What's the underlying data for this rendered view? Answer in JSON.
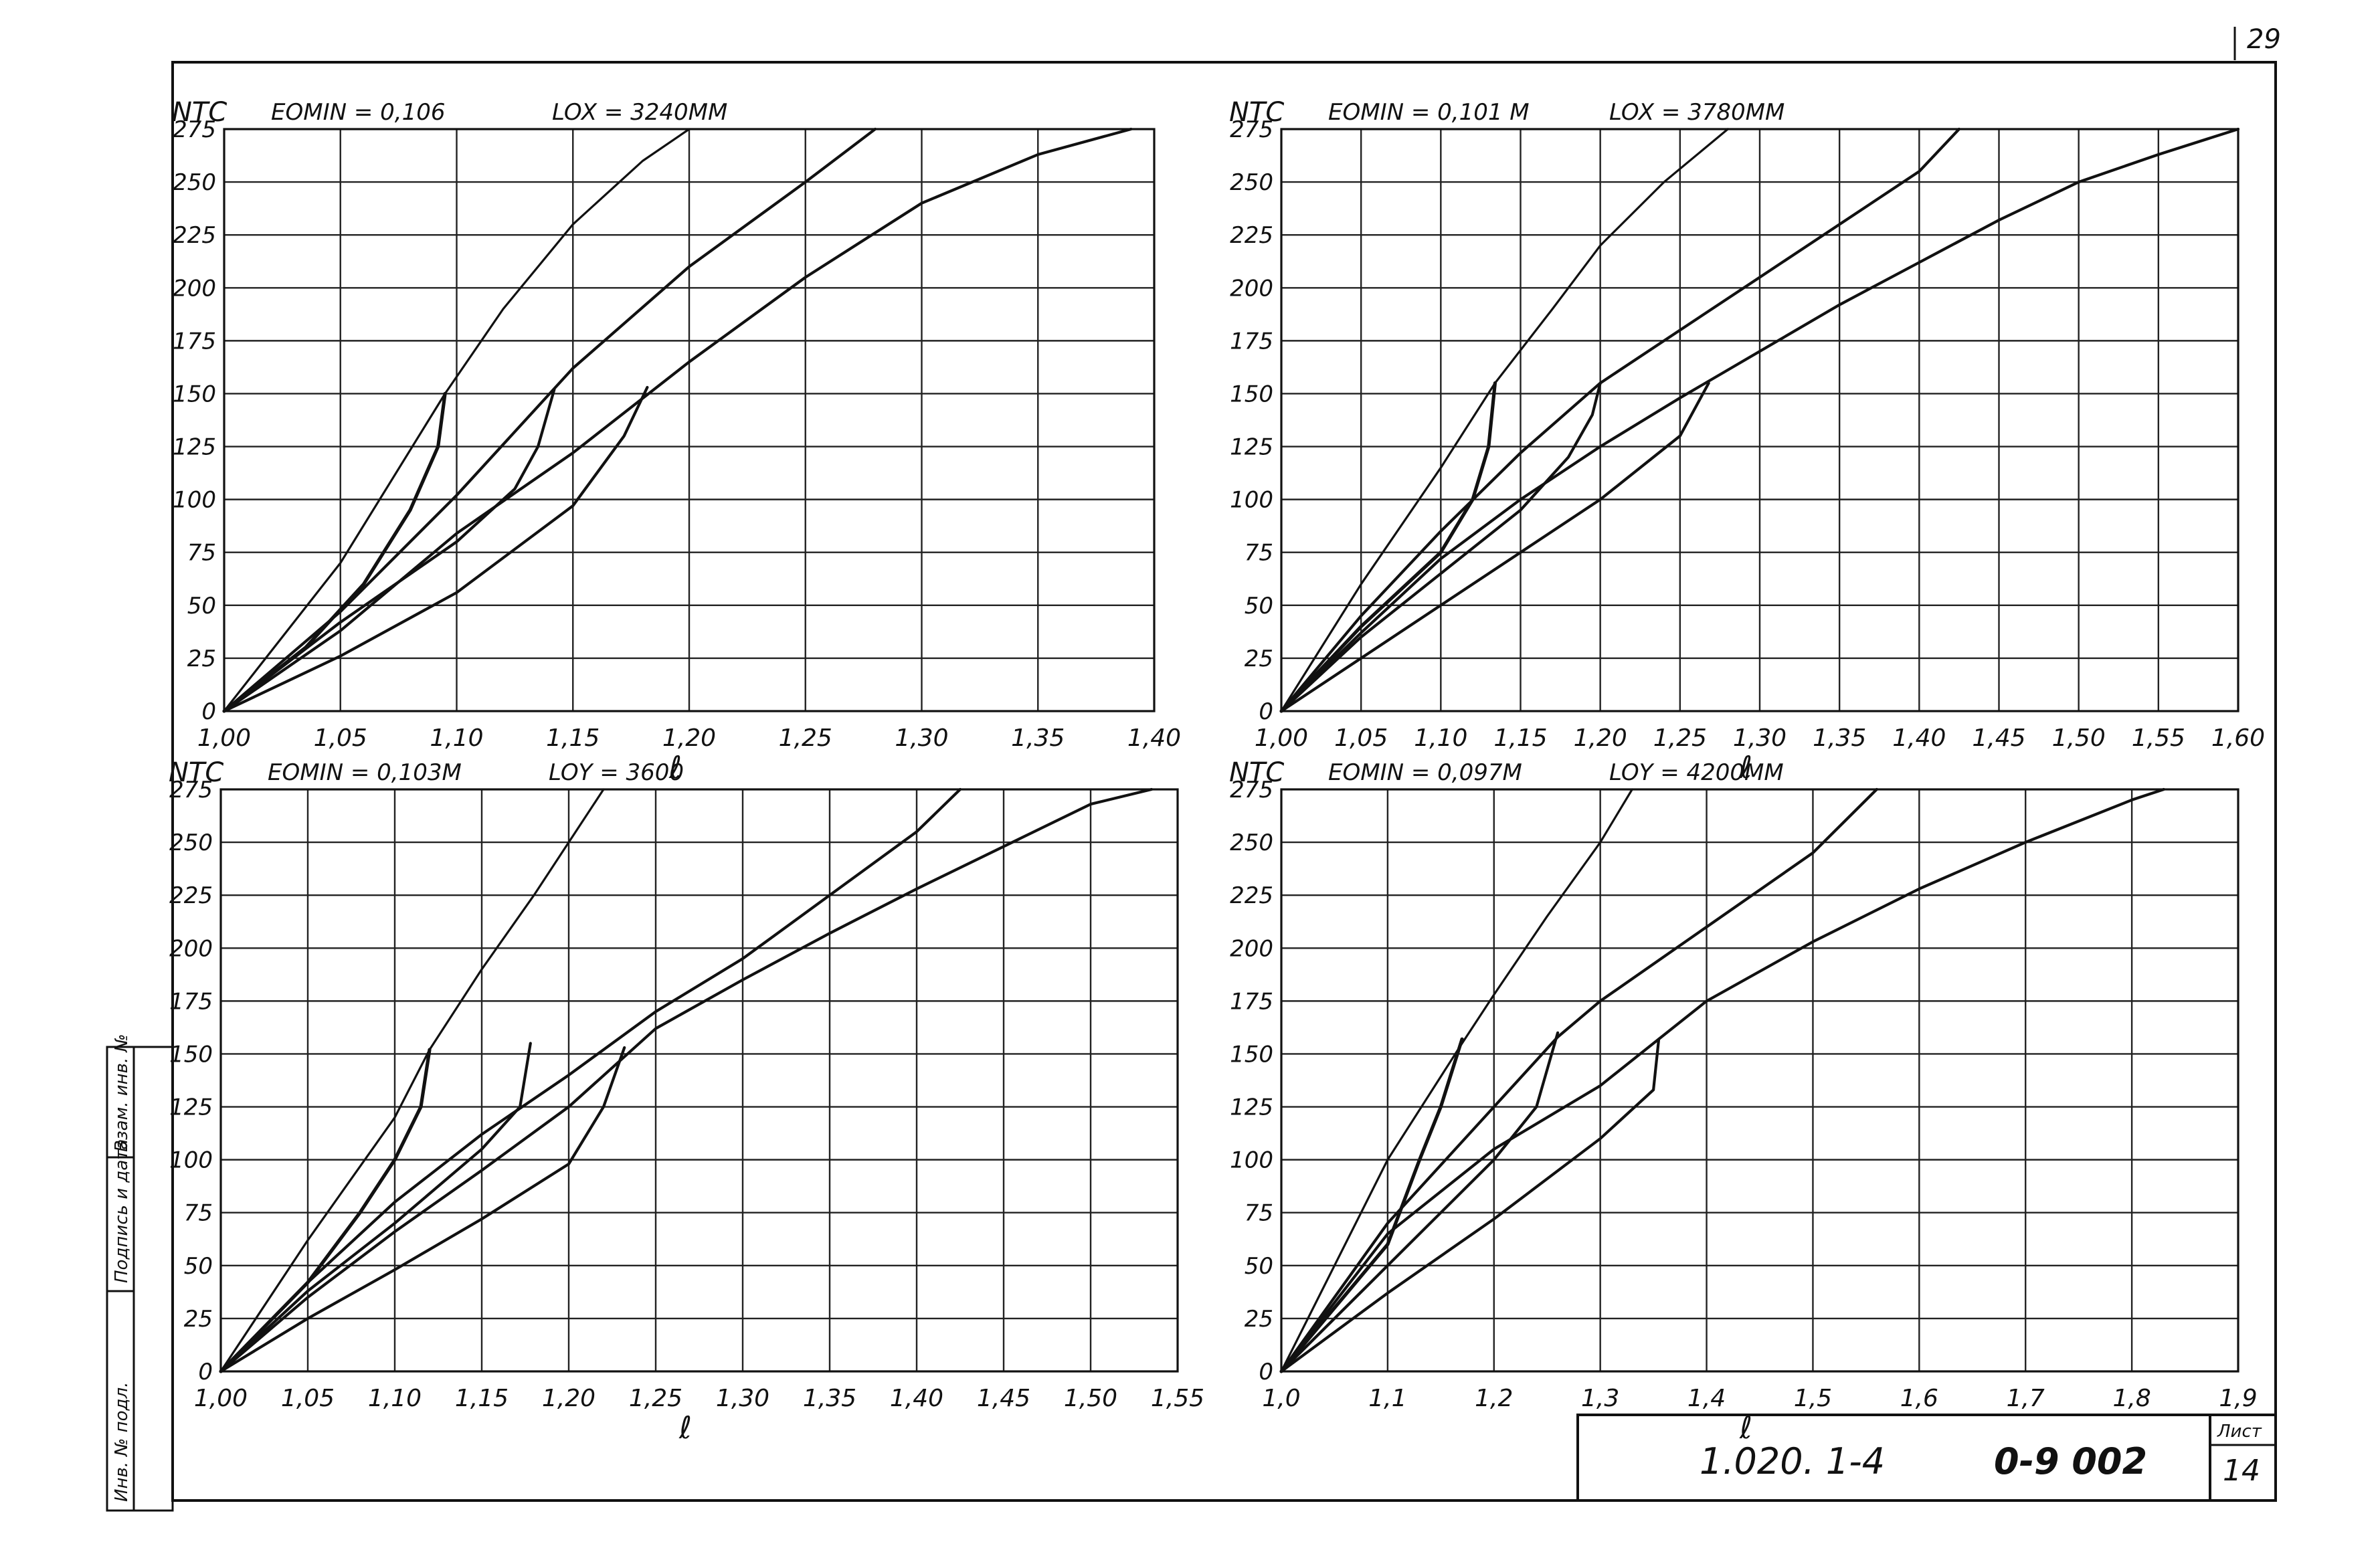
{
  "page_number": "29",
  "side_stamp": {
    "cells": [
      "Инв. № подл.",
      "Подпись и дата",
      "Взам. инв. №"
    ]
  },
  "title_block": {
    "designation": "1.020. 1-4",
    "issue": "0-9 002",
    "sheet_label": "Лист",
    "sheet_number": "14"
  },
  "chart_data": [
    {
      "type": "line",
      "panel": "top-left",
      "ylabel": "NTC",
      "header_1": "EOMIN = 0,106",
      "header_2": "LOX = 3240ММ",
      "xlabel": "ℓ",
      "xlim": [
        1.0,
        1.4
      ],
      "ylim": [
        0,
        275
      ],
      "x_ticks": [
        "1,00",
        "1,05",
        "1,10",
        "1,15",
        "1,20",
        "1,25",
        "1,30",
        "1,35",
        "1,40"
      ],
      "y_ticks": [
        "0",
        "25",
        "50",
        "75",
        "100",
        "125",
        "150",
        "175",
        "200",
        "225",
        "250",
        "275"
      ],
      "grid": true,
      "series": [
        {
          "points": [
            [
              1.0,
              0
            ],
            [
              1.05,
              70
            ],
            [
              1.095,
              150
            ],
            [
              1.12,
              190
            ],
            [
              1.15,
              230
            ],
            [
              1.18,
              260
            ],
            [
              1.2,
              275
            ]
          ]
        },
        {
          "points": [
            [
              1.0,
              0
            ],
            [
              1.05,
              47
            ],
            [
              1.1,
              102
            ],
            [
              1.15,
              162
            ],
            [
              1.2,
              210
            ],
            [
              1.25,
              250
            ],
            [
              1.28,
              275
            ]
          ]
        },
        {
          "points": [
            [
              1.0,
              0
            ],
            [
              1.05,
              38
            ],
            [
              1.1,
              84
            ],
            [
              1.15,
              122
            ],
            [
              1.2,
              165
            ],
            [
              1.25,
              205
            ],
            [
              1.3,
              240
            ],
            [
              1.35,
              263
            ],
            [
              1.39,
              275
            ]
          ]
        },
        {
          "points": [
            [
              1.0,
              0
            ],
            [
              1.05,
              26
            ],
            [
              1.1,
              56
            ],
            [
              1.15,
              97
            ],
            [
              1.172,
              130
            ],
            [
              1.182,
              153
            ]
          ]
        },
        {
          "points": [
            [
              1.0,
              0
            ],
            [
              1.035,
              30
            ],
            [
              1.06,
              60
            ],
            [
              1.08,
              95
            ],
            [
              1.092,
              125
            ],
            [
              1.095,
              150
            ]
          ]
        },
        {
          "points": [
            [
              1.0,
              0
            ],
            [
              1.05,
              42
            ],
            [
              1.1,
              80
            ],
            [
              1.125,
              105
            ],
            [
              1.135,
              125
            ],
            [
              1.142,
              152
            ]
          ]
        }
      ]
    },
    {
      "type": "line",
      "panel": "top-right",
      "ylabel": "NTC",
      "header_1": "EOMIN = 0,101 М",
      "header_2": "LOX = 3780ММ",
      "xlabel": "ℓ",
      "xlim": [
        1.0,
        1.6
      ],
      "ylim": [
        0,
        275
      ],
      "x_ticks": [
        "1,00",
        "1,05",
        "1,10",
        "1,15",
        "1,20",
        "1,25",
        "1,30",
        "1,35",
        "1,40",
        "1,45",
        "1,50",
        "1,55",
        "1,60"
      ],
      "y_ticks": [
        "0",
        "25",
        "50",
        "75",
        "100",
        "125",
        "150",
        "175",
        "200",
        "225",
        "250",
        "275"
      ],
      "grid": true,
      "series": [
        {
          "points": [
            [
              1.0,
              0
            ],
            [
              1.05,
              60
            ],
            [
              1.1,
              115
            ],
            [
              1.134,
              155
            ],
            [
              1.17,
              190
            ],
            [
              1.2,
              220
            ],
            [
              1.24,
              250
            ],
            [
              1.28,
              275
            ]
          ]
        },
        {
          "points": [
            [
              1.0,
              0
            ],
            [
              1.05,
              45
            ],
            [
              1.1,
              85
            ],
            [
              1.15,
              122
            ],
            [
              1.2,
              155
            ],
            [
              1.25,
              180
            ],
            [
              1.3,
              205
            ],
            [
              1.35,
              230
            ],
            [
              1.4,
              255
            ],
            [
              1.425,
              275
            ]
          ]
        },
        {
          "points": [
            [
              1.0,
              0
            ],
            [
              1.05,
              37
            ],
            [
              1.1,
              72
            ],
            [
              1.15,
              100
            ],
            [
              1.2,
              125
            ],
            [
              1.25,
              148
            ],
            [
              1.3,
              170
            ],
            [
              1.35,
              192
            ],
            [
              1.4,
              212
            ],
            [
              1.45,
              232
            ],
            [
              1.5,
              250
            ],
            [
              1.55,
              263
            ],
            [
              1.6,
              275
            ]
          ]
        },
        {
          "points": [
            [
              1.0,
              0
            ],
            [
              1.05,
              25
            ],
            [
              1.1,
              50
            ],
            [
              1.15,
              75
            ],
            [
              1.2,
              100
            ],
            [
              1.25,
              130
            ],
            [
              1.268,
              155
            ]
          ]
        },
        {
          "points": [
            [
              1.0,
              0
            ],
            [
              1.05,
              40
            ],
            [
              1.1,
              75
            ],
            [
              1.12,
              100
            ],
            [
              1.13,
              125
            ],
            [
              1.134,
              155
            ]
          ]
        },
        {
          "points": [
            [
              1.0,
              0
            ],
            [
              1.05,
              35
            ],
            [
              1.1,
              65
            ],
            [
              1.15,
              95
            ],
            [
              1.18,
              120
            ],
            [
              1.195,
              140
            ],
            [
              1.2,
              155
            ]
          ]
        }
      ]
    },
    {
      "type": "line",
      "panel": "bottom-left",
      "ylabel": "NTC",
      "header_1": "EOMIN = 0,103М",
      "header_2": "LOY = 3600",
      "xlabel": "ℓ",
      "xlim": [
        1.0,
        1.55
      ],
      "ylim": [
        0,
        275
      ],
      "x_ticks": [
        "1,00",
        "1,05",
        "1,10",
        "1,15",
        "1,20",
        "1,25",
        "1,30",
        "1,35",
        "1,40",
        "1,45",
        "1,50",
        "1,55"
      ],
      "y_ticks": [
        "0",
        "25",
        "50",
        "75",
        "100",
        "125",
        "150",
        "175",
        "200",
        "225",
        "250",
        "275"
      ],
      "grid": true,
      "series": [
        {
          "points": [
            [
              1.0,
              0
            ],
            [
              1.05,
              62
            ],
            [
              1.1,
              120
            ],
            [
              1.12,
              152
            ],
            [
              1.15,
              190
            ],
            [
              1.18,
              225
            ],
            [
              1.2,
              250
            ],
            [
              1.22,
              275
            ]
          ]
        },
        {
          "points": [
            [
              1.0,
              0
            ],
            [
              1.05,
              42
            ],
            [
              1.1,
              80
            ],
            [
              1.15,
              112
            ],
            [
              1.2,
              140
            ],
            [
              1.25,
              170
            ],
            [
              1.3,
              195
            ],
            [
              1.35,
              225
            ],
            [
              1.4,
              255
            ],
            [
              1.425,
              275
            ]
          ]
        },
        {
          "points": [
            [
              1.0,
              0
            ],
            [
              1.05,
              35
            ],
            [
              1.1,
              66
            ],
            [
              1.15,
              95
            ],
            [
              1.2,
              125
            ],
            [
              1.25,
              162
            ],
            [
              1.3,
              185
            ],
            [
              1.35,
              207
            ],
            [
              1.4,
              228
            ],
            [
              1.45,
              248
            ],
            [
              1.5,
              268
            ],
            [
              1.535,
              275
            ]
          ]
        },
        {
          "points": [
            [
              1.0,
              0
            ],
            [
              1.05,
              25
            ],
            [
              1.1,
              48
            ],
            [
              1.15,
              72
            ],
            [
              1.2,
              98
            ],
            [
              1.22,
              125
            ],
            [
              1.232,
              153
            ]
          ]
        },
        {
          "points": [
            [
              1.0,
              0
            ],
            [
              1.05,
              42
            ],
            [
              1.08,
              75
            ],
            [
              1.1,
              100
            ],
            [
              1.115,
              125
            ],
            [
              1.12,
              152
            ]
          ]
        },
        {
          "points": [
            [
              1.0,
              0
            ],
            [
              1.05,
              38
            ],
            [
              1.1,
              70
            ],
            [
              1.15,
              105
            ],
            [
              1.172,
              125
            ],
            [
              1.178,
              155
            ]
          ]
        }
      ]
    },
    {
      "type": "line",
      "panel": "bottom-right",
      "ylabel": "NTC",
      "header_1": "EOMIN = 0,097М",
      "header_2": "LOY = 4200ММ",
      "xlabel": "ℓ",
      "xlim": [
        1.0,
        1.9
      ],
      "ylim": [
        0,
        275
      ],
      "x_ticks": [
        "1,0",
        "1,1",
        "1,2",
        "1,3",
        "1,4",
        "1,5",
        "1,6",
        "1,7",
        "1,8",
        "1,9"
      ],
      "y_ticks": [
        "0",
        "25",
        "50",
        "75",
        "100",
        "125",
        "150",
        "175",
        "200",
        "225",
        "250",
        "275"
      ],
      "grid": true,
      "series": [
        {
          "points": [
            [
              1.0,
              0
            ],
            [
              1.1,
              100
            ],
            [
              1.17,
              155
            ],
            [
              1.2,
              178
            ],
            [
              1.25,
              215
            ],
            [
              1.3,
              250
            ],
            [
              1.33,
              275
            ]
          ]
        },
        {
          "points": [
            [
              1.0,
              0
            ],
            [
              1.1,
              70
            ],
            [
              1.2,
              125
            ],
            [
              1.26,
              158
            ],
            [
              1.3,
              175
            ],
            [
              1.4,
              210
            ],
            [
              1.5,
              245
            ],
            [
              1.56,
              275
            ]
          ]
        },
        {
          "points": [
            [
              1.0,
              0
            ],
            [
              1.1,
              65
            ],
            [
              1.2,
              105
            ],
            [
              1.3,
              135
            ],
            [
              1.35,
              155
            ],
            [
              1.4,
              175
            ],
            [
              1.5,
              203
            ],
            [
              1.6,
              228
            ],
            [
              1.7,
              250
            ],
            [
              1.8,
              270
            ],
            [
              1.83,
              275
            ]
          ]
        },
        {
          "points": [
            [
              1.0,
              0
            ],
            [
              1.1,
              37
            ],
            [
              1.2,
              72
            ],
            [
              1.3,
              110
            ],
            [
              1.35,
              133
            ],
            [
              1.355,
              157
            ]
          ]
        },
        {
          "points": [
            [
              1.0,
              0
            ],
            [
              1.1,
              60
            ],
            [
              1.13,
              100
            ],
            [
              1.15,
              125
            ],
            [
              1.17,
              157
            ]
          ]
        },
        {
          "points": [
            [
              1.0,
              0
            ],
            [
              1.1,
              50
            ],
            [
              1.2,
              100
            ],
            [
              1.24,
              125
            ],
            [
              1.26,
              160
            ]
          ]
        }
      ]
    }
  ]
}
